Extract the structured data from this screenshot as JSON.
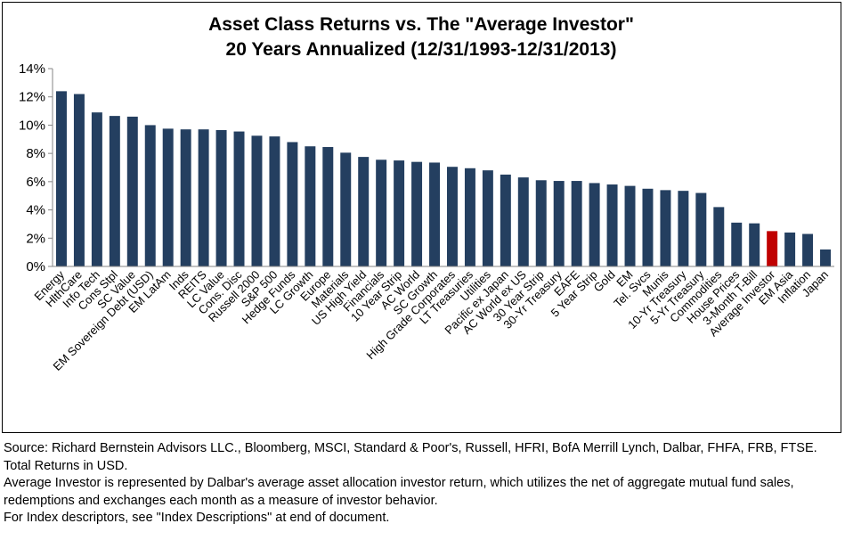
{
  "chart_data": {
    "type": "bar",
    "title": "Asset Class Returns vs. The \"Average Investor\"",
    "subtitle": "20 Years Annualized (12/31/1993-12/31/2013)",
    "xlabel": "",
    "ylabel": "",
    "ylim": [
      0,
      14
    ],
    "yticks": [
      "0%",
      "2%",
      "4%",
      "6%",
      "8%",
      "10%",
      "12%",
      "14%"
    ],
    "grid": false,
    "legend": "none",
    "bar_color": "#243F60",
    "highlight_color": "#C00000",
    "highlight_category": "Average Investor",
    "categories": [
      "Energy",
      "HlthCare",
      "Info Tech",
      "Cons Stpl",
      "SC Value",
      "EM Sovereign Debt (USD)",
      "EM LatAm",
      "Inds",
      "REITS",
      "LC Value",
      "Cons. Disc",
      "Russell 2000",
      "S&P 500",
      "Hedge Funds",
      "LC Growth",
      "Europe",
      "Materials",
      "US High Yield",
      "Financials",
      "10 Year Strip",
      "AC World",
      "SC Growth",
      "High Grade Corporates",
      "LT Treasuries",
      "Utilities",
      "Pacific ex Japan",
      "AC World ex US",
      "30 Year Strip",
      "30-Yr Treasury",
      "EAFE",
      "5 Year Strip",
      "Gold",
      "EM",
      "Tel. Svcs",
      "Munis",
      "10-Yr Treasury",
      "5-Yr Treasury",
      "Commodities",
      "House Prices",
      "3-Month T-Bill",
      "Average Investor",
      "EM Asia",
      "Inflation",
      "Japan"
    ],
    "values": [
      12.4,
      12.2,
      10.9,
      10.65,
      10.6,
      10.0,
      9.75,
      9.7,
      9.7,
      9.65,
      9.55,
      9.25,
      9.2,
      8.8,
      8.5,
      8.45,
      8.05,
      7.75,
      7.55,
      7.5,
      7.4,
      7.35,
      7.05,
      6.95,
      6.8,
      6.5,
      6.3,
      6.1,
      6.05,
      6.05,
      5.9,
      5.8,
      5.7,
      5.5,
      5.4,
      5.35,
      5.2,
      4.2,
      3.1,
      3.05,
      2.5,
      2.4,
      2.3,
      1.2
    ]
  },
  "notes": {
    "source": "Source: Richard Bernstein Advisors LLC., Bloomberg, MSCI, Standard & Poor's, Russell, HFRI, BofA Merrill Lynch, Dalbar, FHFA, FRB, FTSE.  Total Returns in USD.",
    "average_investor": "Average Investor is represented by Dalbar's average asset allocation investor return, which utilizes the net of aggregate mutual fund sales, redemptions and exchanges each month as a measure of investor behavior.",
    "index_descriptors": "For Index descriptors, see \"Index Descriptions\" at end of document."
  }
}
